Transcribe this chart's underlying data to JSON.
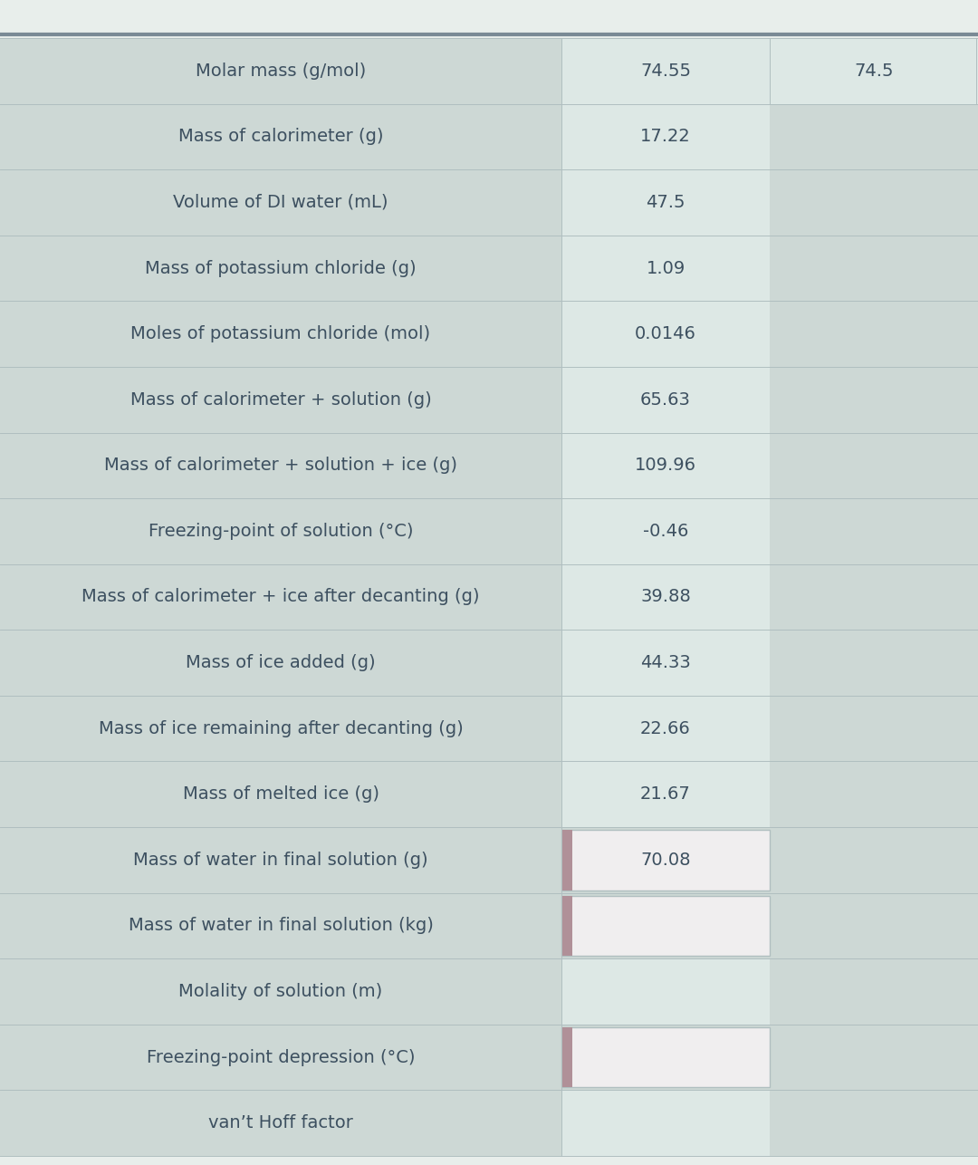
{
  "rows": [
    {
      "label": "Molar mass (g/mol)",
      "col1": "74.55",
      "col2": "74.5",
      "col1_input": false,
      "col2_input": false
    },
    {
      "label": "Mass of calorimeter (g)",
      "col1": "17.22",
      "col2": "",
      "col1_input": false,
      "col2_input": false
    },
    {
      "label": "Volume of DI water (mL)",
      "col1": "47.5",
      "col2": "",
      "col1_input": false,
      "col2_input": false
    },
    {
      "label": "Mass of potassium chloride (g)",
      "col1": "1.09",
      "col2": "",
      "col1_input": false,
      "col2_input": false
    },
    {
      "label": "Moles of potassium chloride (mol)",
      "col1": "0.0146",
      "col2": "",
      "col1_input": false,
      "col2_input": false
    },
    {
      "label": "Mass of calorimeter + solution (g)",
      "col1": "65.63",
      "col2": "",
      "col1_input": false,
      "col2_input": false
    },
    {
      "label": "Mass of calorimeter + solution + ice (g)",
      "col1": "109.96",
      "col2": "",
      "col1_input": false,
      "col2_input": false
    },
    {
      "label": "Freezing-point of solution (°C)",
      "col1": "-0.46",
      "col2": "",
      "col1_input": false,
      "col2_input": false
    },
    {
      "label": "Mass of calorimeter + ice after decanting (g)",
      "col1": "39.88",
      "col2": "",
      "col1_input": false,
      "col2_input": false
    },
    {
      "label": "Mass of ice added (g)",
      "col1": "44.33",
      "col2": "",
      "col1_input": false,
      "col2_input": false
    },
    {
      "label": "Mass of ice remaining after decanting (g)",
      "col1": "22.66",
      "col2": "",
      "col1_input": false,
      "col2_input": false
    },
    {
      "label": "Mass of melted ice (g)",
      "col1": "21.67",
      "col2": "",
      "col1_input": false,
      "col2_input": false
    },
    {
      "label": "Mass of water in final solution (g)",
      "col1": "70.08",
      "col2": "",
      "col1_input": true,
      "col2_input": false
    },
    {
      "label": "Mass of water in final solution (kg)",
      "col1": "",
      "col2": "",
      "col1_input": true,
      "col2_input": false
    },
    {
      "label": "Molality of solution (m)",
      "col1": "",
      "col2": "",
      "col1_input": false,
      "col2_input": false
    },
    {
      "label": "Freezing-point depression (°C)",
      "col1": "",
      "col2": "",
      "col1_input": true,
      "col2_input": false
    },
    {
      "label": "van’t Hoff factor",
      "col1": "",
      "col2": "",
      "col1_input": false,
      "col2_input": false
    }
  ],
  "page_bg": "#e8eeeb",
  "table_bg": "#cdd8d5",
  "cell_bg": "#dde8e5",
  "input_cell_bg": "#f0eeef",
  "input_accent_color": "#b09098",
  "text_color": "#3d5060",
  "border_color": "#b0bfc0",
  "top_line_color": "#7a8a95",
  "label_font_size": 14,
  "value_font_size": 14,
  "fig_width": 10.8,
  "fig_height": 12.86,
  "dpi": 100
}
